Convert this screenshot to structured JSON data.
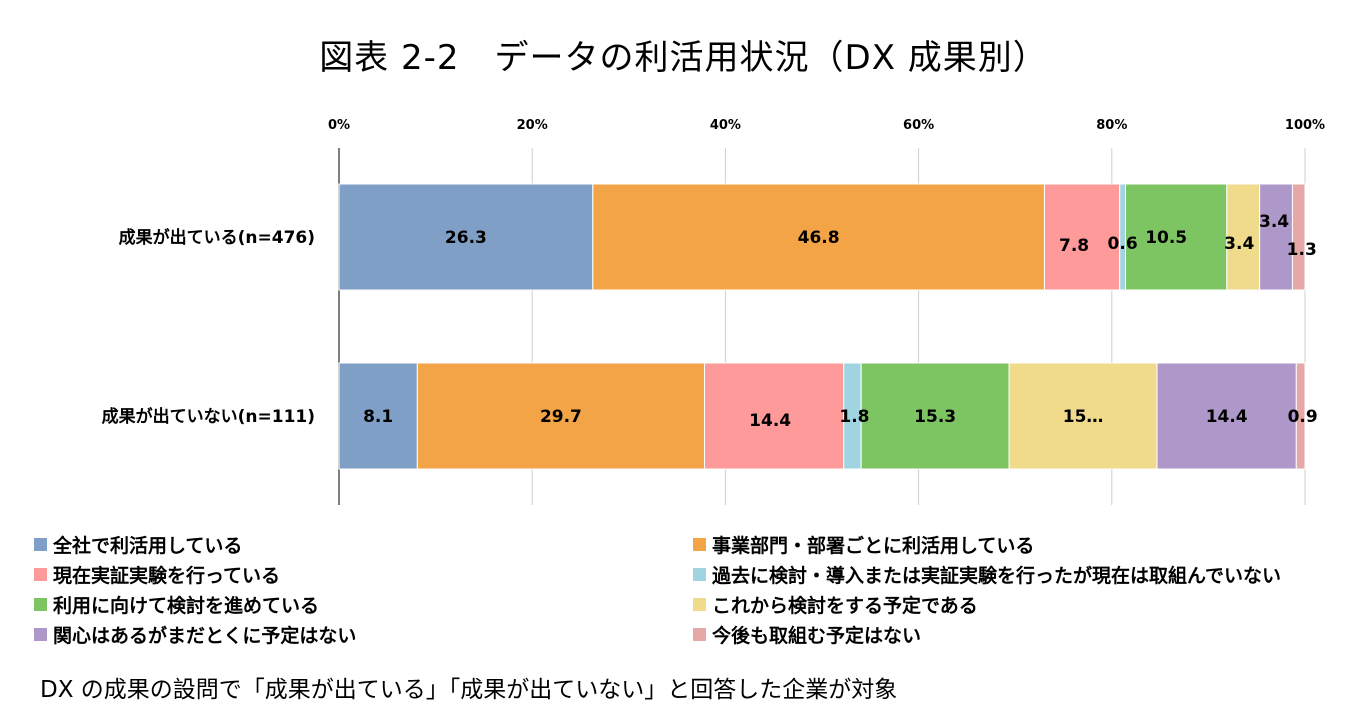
{
  "title": "図表 2-2　データの利活用状況（DX 成果別）",
  "note": "DX の成果の設問で「成果が出ている」「成果が出ていない」と回答した企業が対象",
  "chart_data": {
    "type": "bar",
    "orientation": "horizontal",
    "stacked": true,
    "percent_stacked": true,
    "title": "図表 2-2　データの利活用状況（DX 成果別）",
    "categories": [
      "成果が出ている(n=476)",
      "成果が出ていない(n=111)"
    ],
    "xlim": [
      0,
      100
    ],
    "x_ticks": [
      "0%",
      "20%",
      "40%",
      "60%",
      "80%",
      "100%"
    ],
    "x_tick_values": [
      0,
      20,
      40,
      60,
      80,
      100
    ],
    "grid": true,
    "legend_position": "bottom",
    "series": [
      {
        "name": "全社で利活用している",
        "color": "#7f9fc6",
        "values": [
          26.3,
          8.1
        ],
        "labels": [
          "26.3",
          "8.1"
        ]
      },
      {
        "name": "事業部門・部署ごとに利活用している",
        "color": "#f2a447",
        "values": [
          46.8,
          29.7
        ],
        "labels": [
          "46.8",
          "29.7"
        ]
      },
      {
        "name": "現在実証実験を行っている",
        "color": "#ff9a9a",
        "values": [
          7.8,
          14.4
        ],
        "labels": [
          "7.8",
          "14.4"
        ]
      },
      {
        "name": "過去に検討・導入または実証実験を行ったが現在は取組んでいない",
        "color": "#9fd4e0",
        "values": [
          0.6,
          1.8
        ],
        "labels": [
          "0.6",
          "1.8"
        ]
      },
      {
        "name": "利用に向けて検討を進めている",
        "color": "#7dc563",
        "values": [
          10.5,
          15.3
        ],
        "labels": [
          "10.5",
          "15.3"
        ]
      },
      {
        "name": "これから検討をする予定である",
        "color": "#f0da8c",
        "values": [
          3.4,
          15.3
        ],
        "labels": [
          "3.4",
          "15…"
        ]
      },
      {
        "name": "関心はあるがまだとくに予定はない",
        "color": "#ae97c9",
        "values": [
          3.4,
          14.4
        ],
        "labels": [
          "3.4",
          "14.4"
        ]
      },
      {
        "name": "今後も取組む予定はない",
        "color": "#e6a7a7",
        "values": [
          1.3,
          0.9
        ],
        "labels": [
          "1.3",
          "0.9"
        ]
      }
    ]
  }
}
